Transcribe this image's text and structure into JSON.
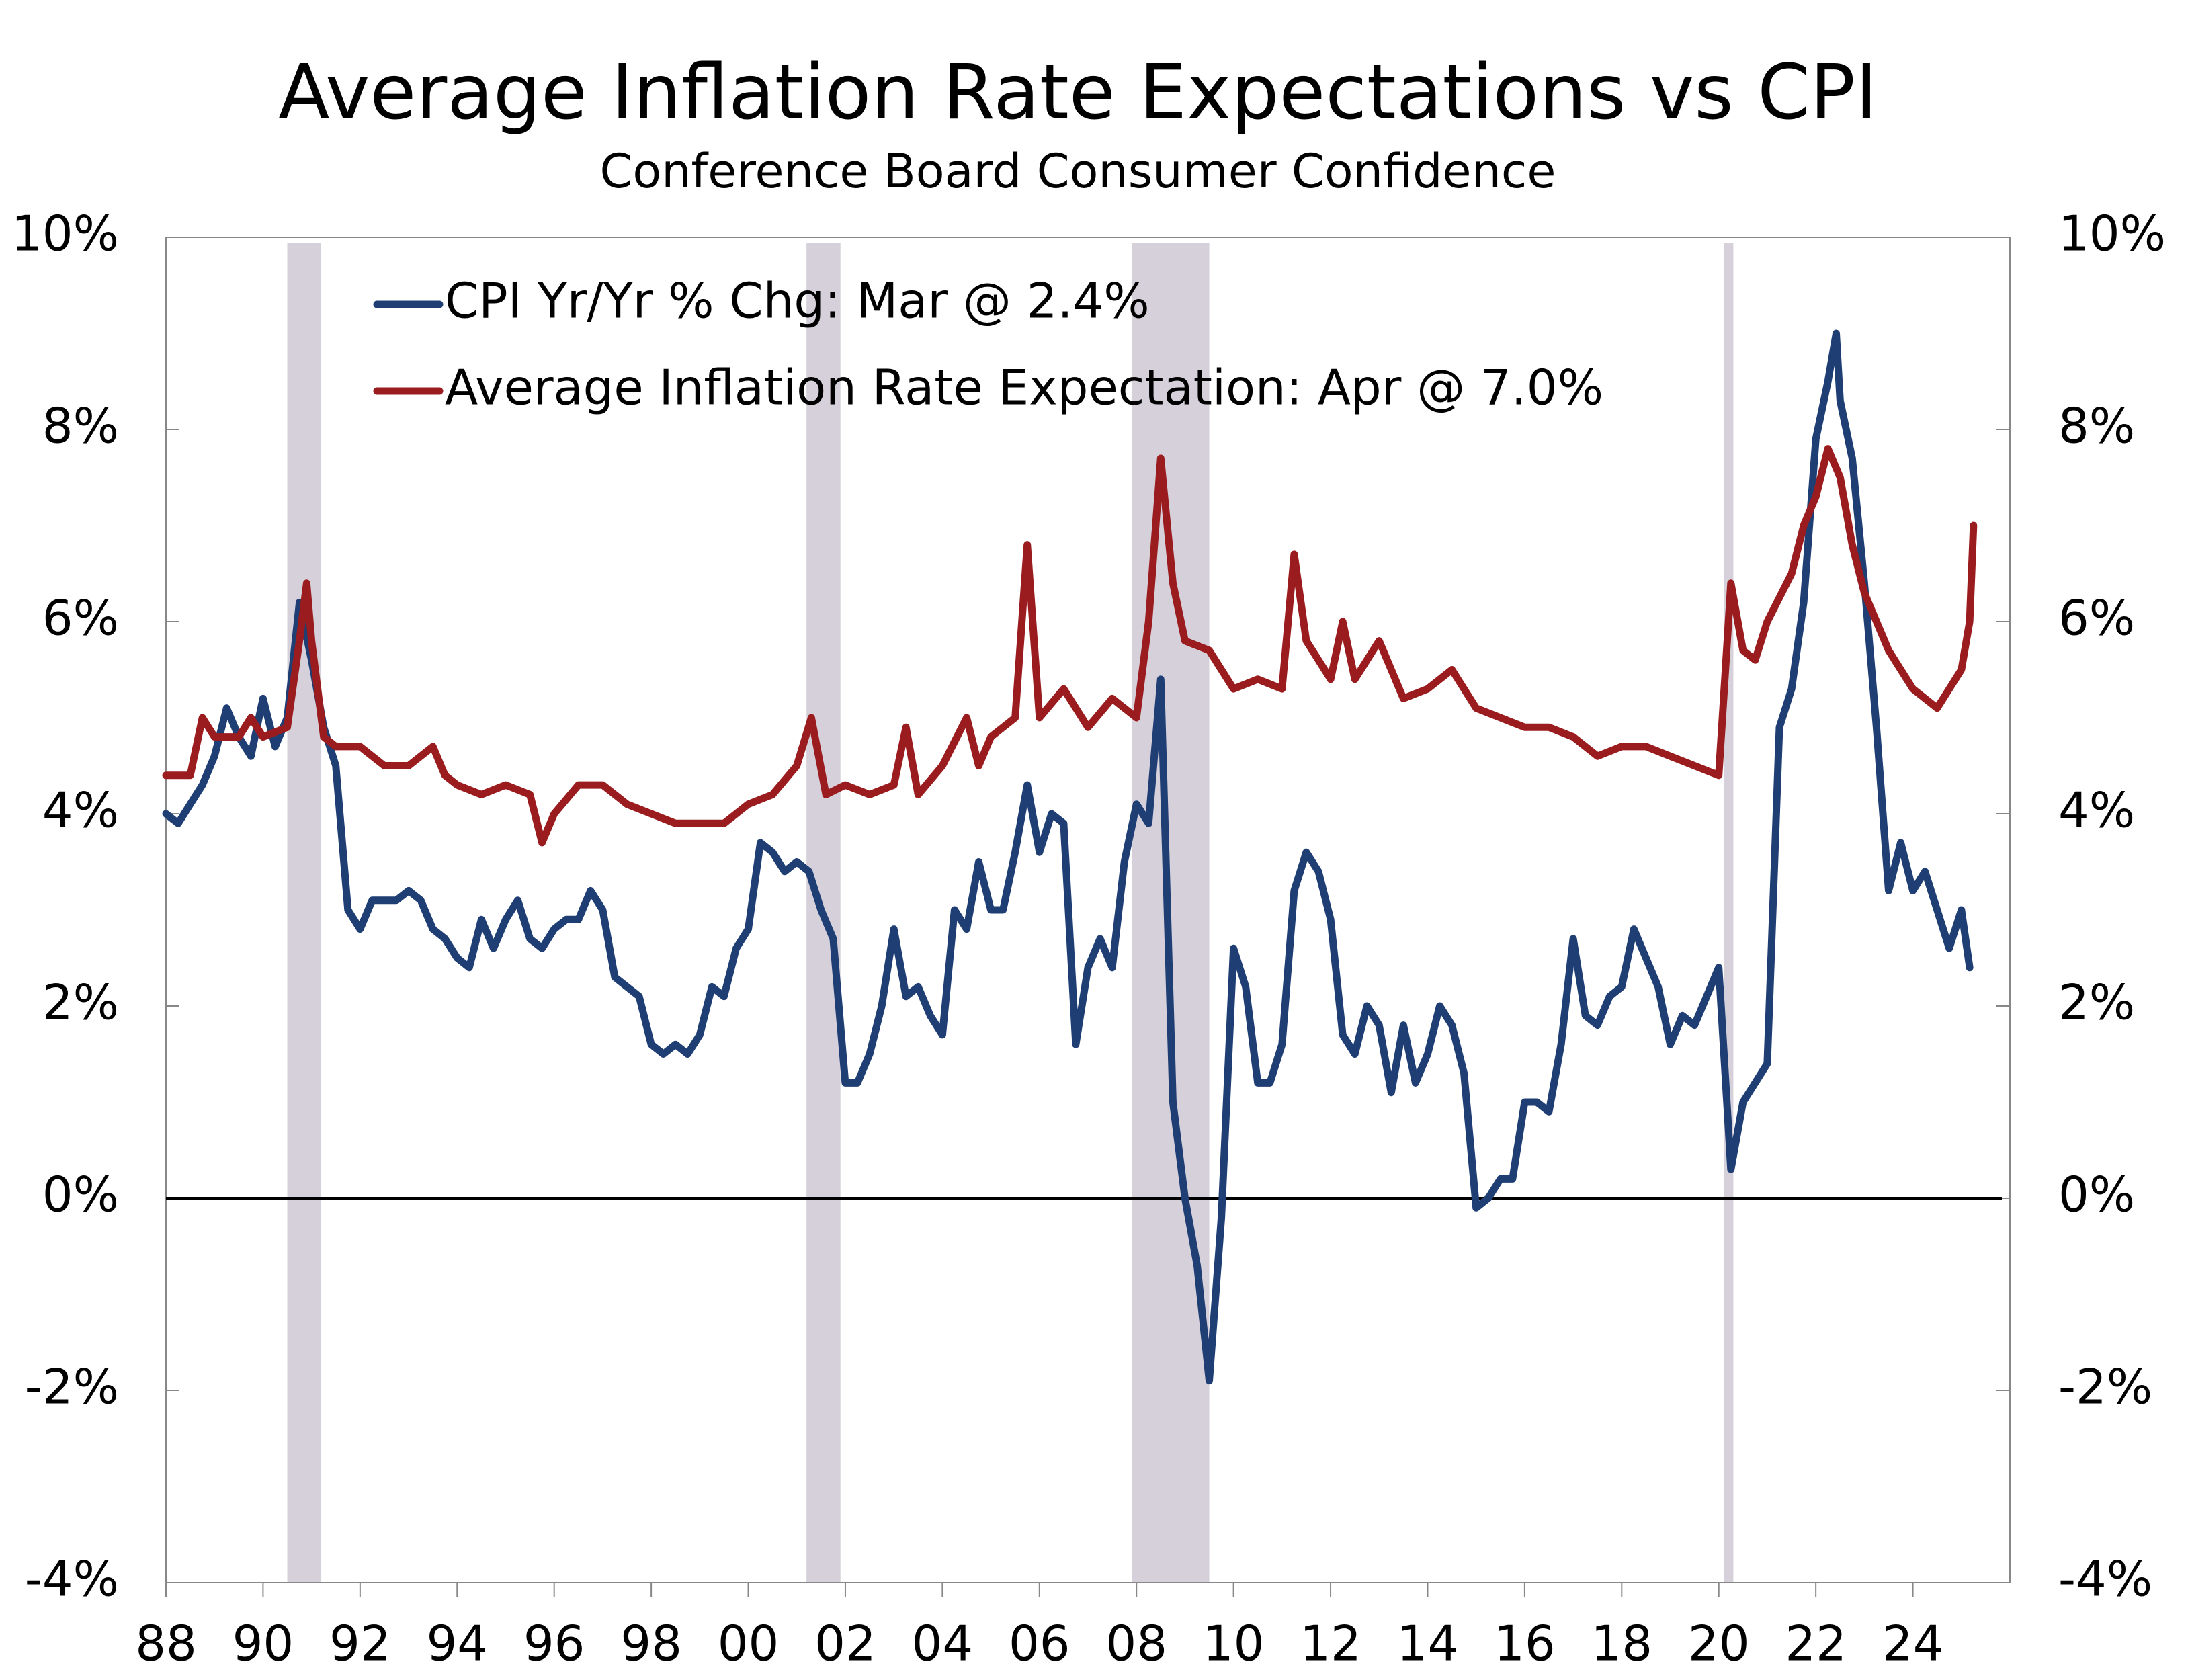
{
  "chart_data": {
    "type": "line",
    "title": "Average Inflation Rate Expectations vs CPI",
    "subtitle": "Conference Board Consumer Confidence",
    "xlim": [
      1988,
      2026
    ],
    "xticks": [
      {
        "value": 1988,
        "label": "88"
      },
      {
        "value": 1990,
        "label": "90"
      },
      {
        "value": 1992,
        "label": "92"
      },
      {
        "value": 1994,
        "label": "94"
      },
      {
        "value": 1996,
        "label": "96"
      },
      {
        "value": 1998,
        "label": "98"
      },
      {
        "value": 2000,
        "label": "00"
      },
      {
        "value": 2002,
        "label": "02"
      },
      {
        "value": 2004,
        "label": "04"
      },
      {
        "value": 2006,
        "label": "06"
      },
      {
        "value": 2008,
        "label": "08"
      },
      {
        "value": 2010,
        "label": "10"
      },
      {
        "value": 2012,
        "label": "12"
      },
      {
        "value": 2014,
        "label": "14"
      },
      {
        "value": 2016,
        "label": "16"
      },
      {
        "value": 2018,
        "label": "18"
      },
      {
        "value": 2020,
        "label": "20"
      },
      {
        "value": 2022,
        "label": "22"
      },
      {
        "value": 2024,
        "label": "24"
      }
    ],
    "ylim": [
      -4,
      10
    ],
    "yticks": [
      {
        "value": -4,
        "label": "-4%"
      },
      {
        "value": -2,
        "label": "-2%"
      },
      {
        "value": 0,
        "label": "0%"
      },
      {
        "value": 2,
        "label": "2%"
      },
      {
        "value": 4,
        "label": "4%"
      },
      {
        "value": 6,
        "label": "6%"
      },
      {
        "value": 8,
        "label": "8%"
      },
      {
        "value": 10,
        "label": "10%"
      }
    ],
    "recessions": [
      [
        1990.5,
        1991.2
      ],
      [
        2001.2,
        2001.9
      ],
      [
        2007.9,
        2009.5
      ],
      [
        2020.1,
        2020.3
      ]
    ],
    "recession_color": "#d5d0da",
    "legend": "upper left",
    "series": [
      {
        "name": "CPI Yr/Yr % Chg: Mar @ 2.4%",
        "color": "#1f3e74",
        "x": [
          1988.0,
          1988.25,
          1988.5,
          1988.75,
          1989.0,
          1989.25,
          1989.5,
          1989.75,
          1990.0,
          1990.25,
          1990.5,
          1990.75,
          1991.0,
          1991.25,
          1991.5,
          1991.75,
          1992.0,
          1992.25,
          1992.5,
          1992.75,
          1993.0,
          1993.25,
          1993.5,
          1993.75,
          1994.0,
          1994.25,
          1994.5,
          1994.75,
          1995.0,
          1995.25,
          1995.5,
          1995.75,
          1996.0,
          1996.25,
          1996.5,
          1996.75,
          1997.0,
          1997.25,
          1997.5,
          1997.75,
          1998.0,
          1998.25,
          1998.5,
          1998.75,
          1999.0,
          1999.25,
          1999.5,
          1999.75,
          2000.0,
          2000.25,
          2000.5,
          2000.75,
          2001.0,
          2001.25,
          2001.5,
          2001.75,
          2002.0,
          2002.25,
          2002.5,
          2002.75,
          2003.0,
          2003.25,
          2003.5,
          2003.75,
          2004.0,
          2004.25,
          2004.5,
          2004.75,
          2005.0,
          2005.25,
          2005.5,
          2005.75,
          2006.0,
          2006.25,
          2006.5,
          2006.75,
          2007.0,
          2007.25,
          2007.5,
          2007.75,
          2008.0,
          2008.25,
          2008.5,
          2008.75,
          2009.0,
          2009.25,
          2009.5,
          2009.75,
          2010.0,
          2010.25,
          2010.5,
          2010.75,
          2011.0,
          2011.25,
          2011.5,
          2011.75,
          2012.0,
          2012.25,
          2012.5,
          2012.75,
          2013.0,
          2013.25,
          2013.5,
          2013.75,
          2014.0,
          2014.25,
          2014.5,
          2014.75,
          2015.0,
          2015.25,
          2015.5,
          2015.75,
          2016.0,
          2016.25,
          2016.5,
          2016.75,
          2017.0,
          2017.25,
          2017.5,
          2017.75,
          2018.0,
          2018.25,
          2018.5,
          2018.75,
          2019.0,
          2019.25,
          2019.5,
          2019.75,
          2020.0,
          2020.25,
          2020.5,
          2020.75,
          2021.0,
          2021.25,
          2021.5,
          2021.75,
          2022.0,
          2022.25,
          2022.42,
          2022.5,
          2022.75,
          2023.0,
          2023.25,
          2023.5,
          2023.75,
          2024.0,
          2024.25,
          2024.5,
          2024.75,
          2025.0,
          2025.17
        ],
        "values": [
          4.0,
          3.9,
          4.1,
          4.3,
          4.6,
          5.1,
          4.8,
          4.6,
          5.2,
          4.7,
          5.0,
          6.2,
          5.6,
          4.9,
          4.5,
          3.0,
          2.8,
          3.1,
          3.1,
          3.1,
          3.2,
          3.1,
          2.8,
          2.7,
          2.5,
          2.4,
          2.9,
          2.6,
          2.9,
          3.1,
          2.7,
          2.6,
          2.8,
          2.9,
          2.9,
          3.2,
          3.0,
          2.3,
          2.2,
          2.1,
          1.6,
          1.5,
          1.6,
          1.5,
          1.7,
          2.2,
          2.1,
          2.6,
          2.8,
          3.7,
          3.6,
          3.4,
          3.5,
          3.4,
          3.0,
          2.7,
          1.2,
          1.2,
          1.5,
          2.0,
          2.8,
          2.1,
          2.2,
          1.9,
          1.7,
          3.0,
          2.8,
          3.5,
          3.0,
          3.0,
          3.6,
          4.3,
          3.6,
          4.0,
          3.9,
          1.6,
          2.4,
          2.7,
          2.4,
          3.5,
          4.1,
          3.9,
          5.4,
          1.0,
          0.0,
          -0.7,
          -1.9,
          -0.2,
          2.6,
          2.2,
          1.2,
          1.2,
          1.6,
          3.2,
          3.6,
          3.4,
          2.9,
          1.7,
          1.5,
          2.0,
          1.8,
          1.1,
          1.8,
          1.2,
          1.5,
          2.0,
          1.8,
          1.3,
          -0.1,
          0.0,
          0.2,
          0.2,
          1.0,
          1.0,
          0.9,
          1.6,
          2.7,
          1.9,
          1.8,
          2.1,
          2.2,
          2.8,
          2.5,
          2.2,
          1.6,
          1.9,
          1.8,
          2.1,
          2.4,
          0.3,
          1.0,
          1.2,
          1.4,
          4.9,
          5.3,
          6.2,
          7.9,
          8.5,
          9.0,
          8.3,
          7.7,
          6.4,
          4.9,
          3.2,
          3.7,
          3.2,
          3.4,
          3.0,
          2.6,
          3.0,
          2.4
        ]
      },
      {
        "name": "Average Inflation Rate Expectation: Apr @ 7.0%",
        "color": "#9b1c1f",
        "x": [
          1988.0,
          1988.5,
          1988.75,
          1989.0,
          1989.5,
          1989.75,
          1990.0,
          1990.5,
          1990.75,
          1990.9,
          1991.0,
          1991.25,
          1991.5,
          1992.0,
          1992.5,
          1993.0,
          1993.5,
          1993.75,
          1994.0,
          1994.5,
          1995.0,
          1995.5,
          1995.75,
          1996.0,
          1996.5,
          1997.0,
          1997.5,
          1998.0,
          1998.5,
          1999.0,
          1999.5,
          2000.0,
          2000.5,
          2001.0,
          2001.3,
          2001.6,
          2002.0,
          2002.5,
          2003.0,
          2003.25,
          2003.5,
          2004.0,
          2004.5,
          2004.75,
          2005.0,
          2005.5,
          2005.75,
          2006.0,
          2006.5,
          2007.0,
          2007.5,
          2008.0,
          2008.25,
          2008.5,
          2008.75,
          2009.0,
          2009.5,
          2010.0,
          2010.5,
          2011.0,
          2011.25,
          2011.5,
          2012.0,
          2012.25,
          2012.5,
          2013.0,
          2013.5,
          2014.0,
          2014.5,
          2015.0,
          2015.5,
          2016.0,
          2016.5,
          2017.0,
          2017.5,
          2018.0,
          2018.5,
          2019.0,
          2019.5,
          2020.0,
          2020.25,
          2020.5,
          2020.75,
          2021.0,
          2021.5,
          2021.75,
          2022.0,
          2022.25,
          2022.5,
          2022.75,
          2023.0,
          2023.5,
          2024.0,
          2024.5,
          2025.0,
          2025.17,
          2025.25
        ],
        "values": [
          4.4,
          4.4,
          5.0,
          4.8,
          4.8,
          5.0,
          4.8,
          4.9,
          5.8,
          6.4,
          5.8,
          4.8,
          4.7,
          4.7,
          4.5,
          4.5,
          4.7,
          4.4,
          4.3,
          4.2,
          4.3,
          4.2,
          3.7,
          4.0,
          4.3,
          4.3,
          4.1,
          4.0,
          3.9,
          3.9,
          3.9,
          4.1,
          4.2,
          4.5,
          5.0,
          4.2,
          4.3,
          4.2,
          4.3,
          4.9,
          4.2,
          4.5,
          5.0,
          4.5,
          4.8,
          5.0,
          6.8,
          5.0,
          5.3,
          4.9,
          5.2,
          5.0,
          6.0,
          7.7,
          6.4,
          5.8,
          5.7,
          5.3,
          5.4,
          5.3,
          6.7,
          5.8,
          5.4,
          6.0,
          5.4,
          5.8,
          5.2,
          5.3,
          5.5,
          5.1,
          5.0,
          4.9,
          4.9,
          4.8,
          4.6,
          4.7,
          4.7,
          4.6,
          4.5,
          4.4,
          6.4,
          5.7,
          5.6,
          6.0,
          6.5,
          7.0,
          7.3,
          7.8,
          7.5,
          6.8,
          6.3,
          5.7,
          5.3,
          5.1,
          5.5,
          6.0,
          7.0
        ]
      }
    ]
  }
}
